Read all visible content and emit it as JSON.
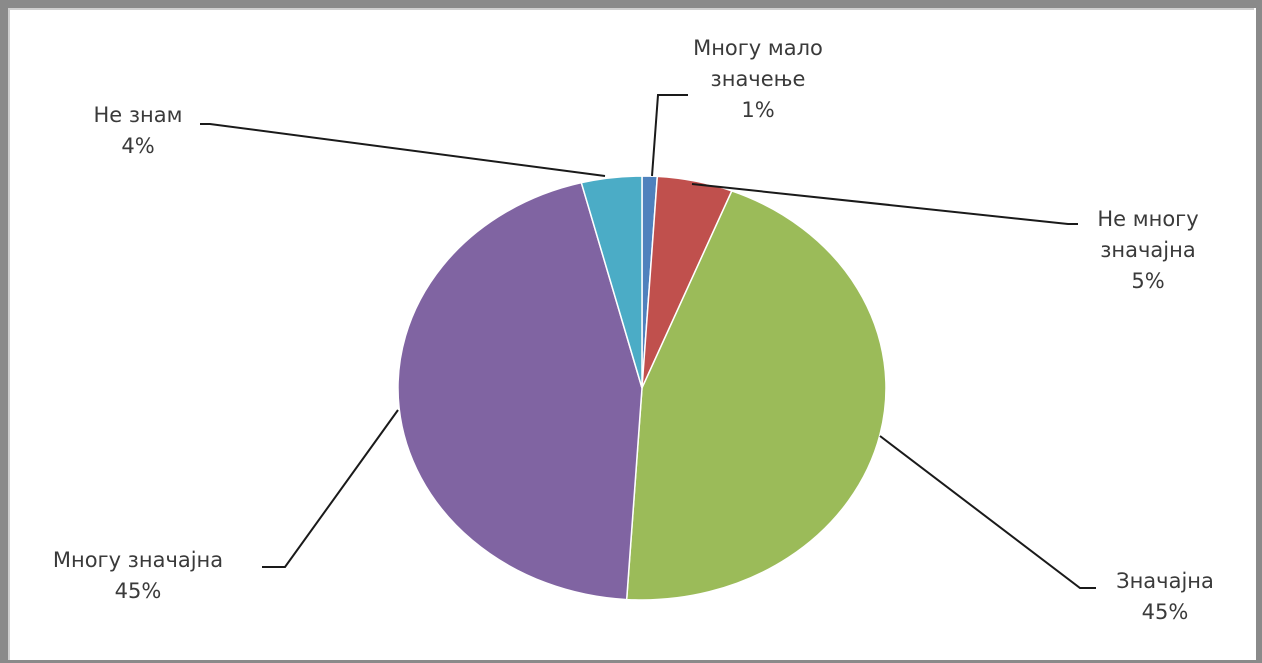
{
  "chart_data": {
    "type": "pie",
    "slices": [
      {
        "label_lines": [
          "Многу мало",
          "значење"
        ],
        "value": 1,
        "pct_text": "1%",
        "color": "#4f81bd"
      },
      {
        "label_lines": [
          "Не многу",
          "значајна"
        ],
        "value": 5,
        "pct_text": "5%",
        "color": "#c0504d"
      },
      {
        "label_lines": [
          "Значајна"
        ],
        "value": 45,
        "pct_text": "45%",
        "color": "#9bbb59"
      },
      {
        "label_lines": [
          "Многу значајна"
        ],
        "value": 45,
        "pct_text": "45%",
        "color": "#8064a2"
      },
      {
        "label_lines": [
          "Не знам"
        ],
        "value": 4,
        "pct_text": "4%",
        "color": "#4bacc6"
      }
    ]
  }
}
